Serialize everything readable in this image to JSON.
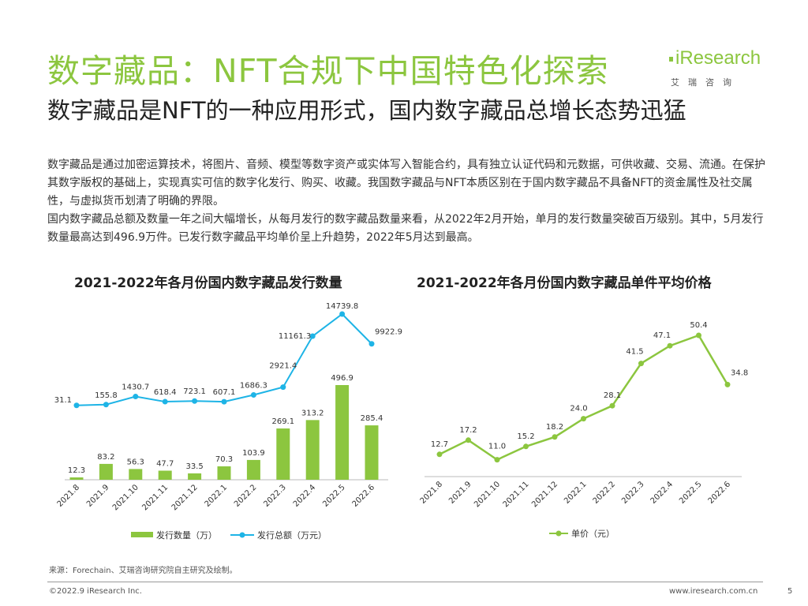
{
  "header": {
    "title": "数字藏品：NFT合规下中国特色化探索",
    "subtitle": "数字藏品是NFT的一种应用形式，国内数字藏品总增长态势迅猛"
  },
  "logo": {
    "name": "iResearch",
    "sub": "艾瑞咨询"
  },
  "body": {
    "paragraph1": "数字藏品是通过加密运算技术，将图片、音频、模型等数字资产或实体写入智能合约，具有独立认证代码和元数据，可供收藏、交易、流通。在保护其数字版权的基础上，实现真实可信的数字化发行、购买、收藏。我国数字藏品与NFT本质区别在于国内数字藏品不具备NFT的资金属性及社交属性，与虚拟货币划清了明确的界限。",
    "paragraph2": "国内数字藏品总额及数量一年之间大幅增长，从每月发行的数字藏品数量来看，从2022年2月开始，单月的发行数量突破百万级别。其中，5月发行数量最高达到496.9万件。已发行数字藏品平均单价呈上升趋势，2022年5月达到最高。"
  },
  "colors": {
    "accent_green": "#8cc63f",
    "line_blue": "#1eb4e6",
    "text_dark": "#222222"
  },
  "chart_data": [
    {
      "type": "bar",
      "title": "2021-2022年各月份国内数字藏品发行数量",
      "categories": [
        "2021.8",
        "2021.9",
        "2021.10",
        "2021.11",
        "2021.12",
        "2022.1",
        "2022.2",
        "2022.3",
        "2022.4",
        "2022.5",
        "2022.6"
      ],
      "series": [
        {
          "name": "发行数量（万）",
          "type": "bar",
          "color": "#8cc63f",
          "values": [
            12.3,
            83.2,
            56.3,
            47.7,
            33.5,
            70.3,
            103.9,
            269.1,
            313.2,
            496.9,
            285.4
          ],
          "labels": [
            "12.3",
            "83.2",
            "56.3",
            "47.7",
            "33.5",
            "70.3",
            "103.9",
            "269.1",
            "313.2",
            "496.9",
            "285.4"
          ]
        },
        {
          "name": "发行总额（万元）",
          "type": "line",
          "color": "#1eb4e6",
          "values": [
            31.1,
            155.8,
            1430.7,
            618.4,
            723.1,
            607.1,
            1686.3,
            2921.4,
            11161.3,
            14739.8,
            9922.9
          ],
          "labels": [
            "31.1",
            "155.8",
            "1430.7",
            "618.4",
            "723.1",
            "607.1",
            "1686.3",
            "2921.4",
            "11161.3",
            "14739.8",
            "9922.9"
          ]
        }
      ],
      "legend_position": "bottom",
      "grid": false
    },
    {
      "type": "line",
      "title": "2021-2022年各月份国内数字藏品单件平均价格",
      "categories": [
        "2021.8",
        "2021.9",
        "2021.10",
        "2021.11",
        "2021.12",
        "2022.1",
        "2022.2",
        "2022.3",
        "2022.4",
        "2022.5",
        "2022.6"
      ],
      "series": [
        {
          "name": "单价（元）",
          "color": "#8cc63f",
          "values": [
            12.7,
            17.2,
            11.0,
            15.2,
            18.2,
            24.0,
            28.1,
            41.5,
            47.1,
            50.4,
            34.8
          ],
          "labels": [
            "12.7",
            "17.2",
            "11.0",
            "15.2",
            "18.2",
            "24.0",
            "28.1",
            "41.5",
            "47.1",
            "50.4",
            "34.8"
          ]
        }
      ],
      "legend_position": "bottom",
      "grid": false
    }
  ],
  "footer": {
    "source": "来源：Forechain、艾瑞咨询研究院自主研究及绘制。",
    "copyright": "©2022.9 iResearch Inc.",
    "website": "www.iresearch.com.cn",
    "page": "5"
  }
}
